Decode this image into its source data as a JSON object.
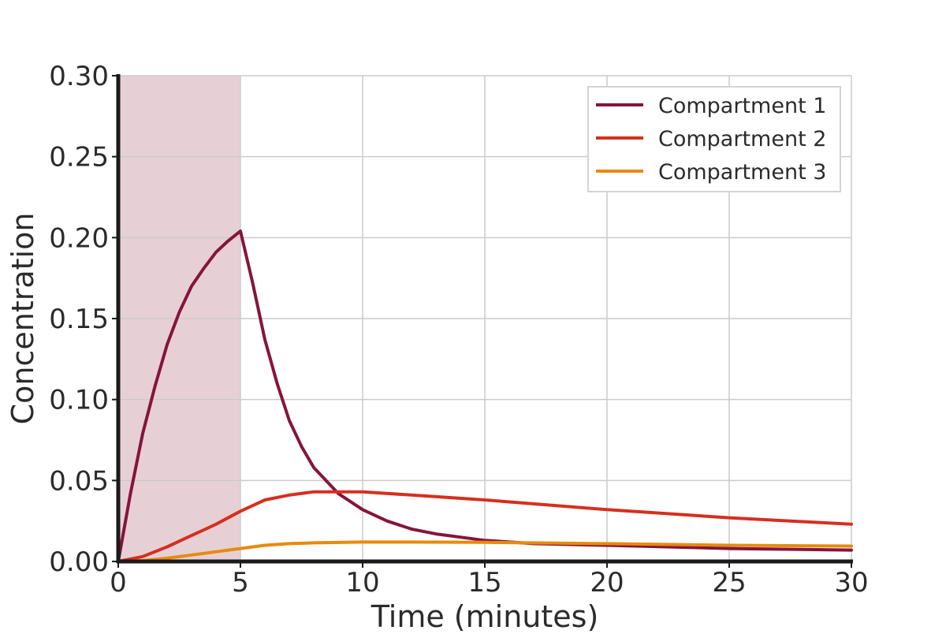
{
  "chart_data": {
    "type": "line",
    "title": "",
    "xlabel": "Time (minutes)",
    "ylabel": "Concentration",
    "xlim": [
      0,
      30
    ],
    "ylim": [
      0,
      0.3
    ],
    "xticks": [
      0,
      5,
      10,
      15,
      20,
      25,
      30
    ],
    "yticks": [
      0,
      0.05,
      0.1,
      0.15,
      0.2,
      0.25,
      0.3
    ],
    "x_tick_labels": [
      "0",
      "5",
      "10",
      "15",
      "20",
      "25",
      "30"
    ],
    "y_tick_labels": [
      "0.00",
      "0.05",
      "0.10",
      "0.15",
      "0.20",
      "0.25",
      "0.30"
    ],
    "grid": true,
    "legend_position": "top-right",
    "shaded_region": {
      "x_start": 0,
      "x_end": 5,
      "color": "#e6d0d6"
    },
    "series": [
      {
        "name": "Compartment 1",
        "color": "#86143d",
        "x": [
          0,
          0.5,
          1,
          1.5,
          2,
          2.5,
          3,
          3.5,
          4,
          4.5,
          5,
          5.5,
          6,
          6.5,
          7,
          7.5,
          8,
          9,
          10,
          11,
          12,
          13,
          14,
          15,
          17,
          20,
          25,
          30
        ],
        "y": [
          0,
          0.042,
          0.079,
          0.108,
          0.134,
          0.154,
          0.17,
          0.181,
          0.191,
          0.198,
          0.204,
          0.172,
          0.137,
          0.11,
          0.087,
          0.071,
          0.058,
          0.042,
          0.032,
          0.025,
          0.02,
          0.017,
          0.015,
          0.013,
          0.011,
          0.01,
          0.008,
          0.007
        ]
      },
      {
        "name": "Compartment 2",
        "color": "#d62f1f",
        "x": [
          0,
          1,
          2,
          3,
          4,
          5,
          6,
          7,
          8,
          9,
          10,
          12,
          15,
          20,
          25,
          30
        ],
        "y": [
          0,
          0.003,
          0.009,
          0.016,
          0.023,
          0.031,
          0.038,
          0.041,
          0.043,
          0.043,
          0.043,
          0.041,
          0.038,
          0.032,
          0.027,
          0.023
        ]
      },
      {
        "name": "Compartment 3",
        "color": "#e88a0c",
        "x": [
          0,
          1,
          2,
          3,
          4,
          5,
          6,
          7,
          8,
          10,
          12,
          15,
          20,
          25,
          30
        ],
        "y": [
          0,
          0.0005,
          0.002,
          0.004,
          0.006,
          0.008,
          0.01,
          0.011,
          0.0115,
          0.012,
          0.012,
          0.0118,
          0.011,
          0.01,
          0.0095
        ]
      }
    ]
  }
}
